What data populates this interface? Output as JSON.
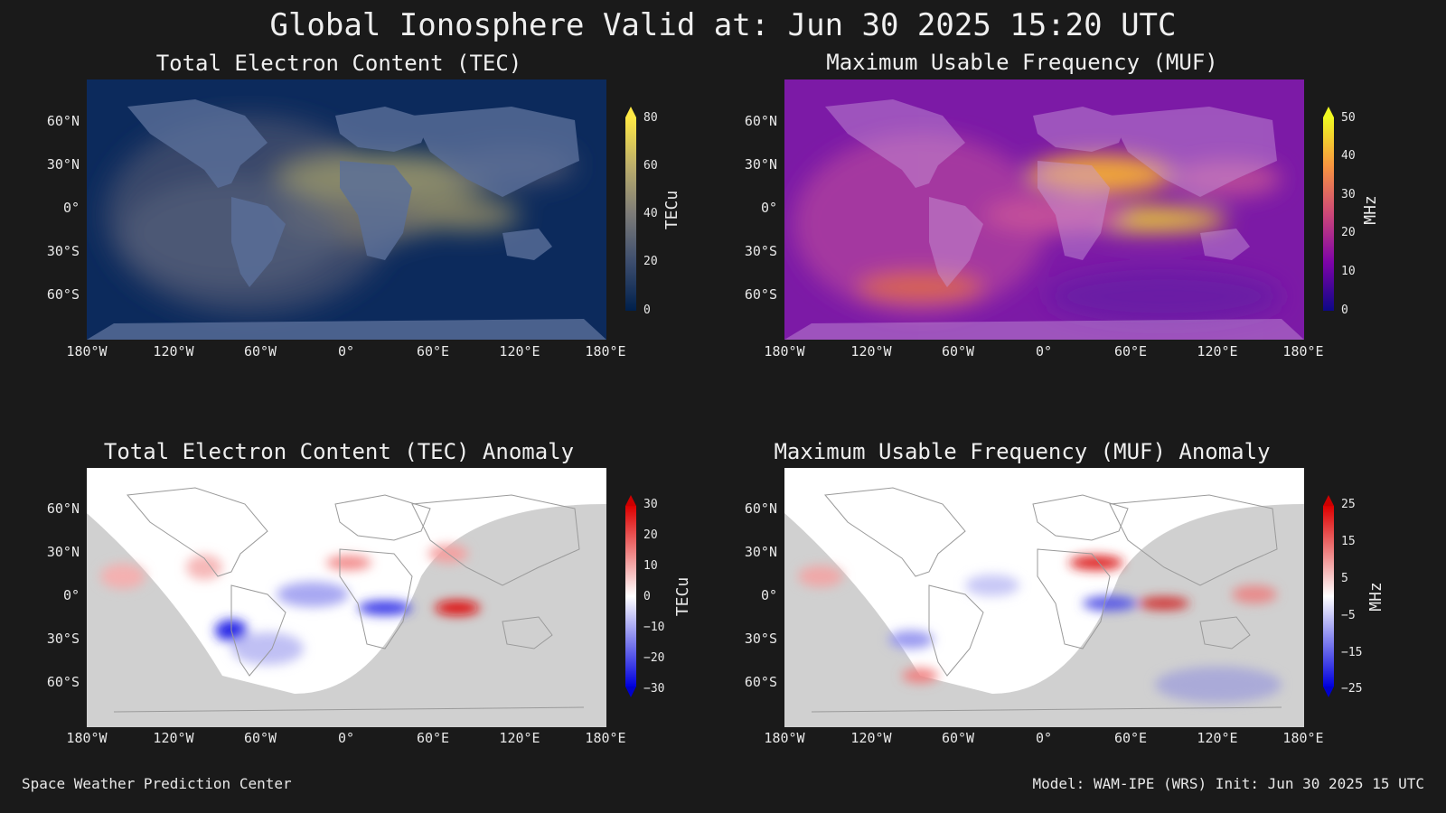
{
  "title": "Global Ionosphere Valid at: Jun 30 2025 15:20 UTC",
  "footer": {
    "left": "Space Weather Prediction Center",
    "right": "Model: WAM-IPE (WRS) Init: Jun 30 2025 15 UTC"
  },
  "lat_ticks": [
    "60°N",
    "30°N",
    "0°",
    "30°S",
    "60°S"
  ],
  "lon_ticks": [
    "180°W",
    "120°W",
    "60°W",
    "0°",
    "60°E",
    "120°E",
    "180°E"
  ],
  "panels": [
    {
      "title": "Total Electron Content (TEC)",
      "unit": "TECu",
      "colormap": "cividis",
      "colorbar_ticks": [
        "80",
        "60",
        "40",
        "20",
        "0"
      ]
    },
    {
      "title": "Maximum Usable Frequency (MUF)",
      "unit": "MHz",
      "colormap": "plasma",
      "colorbar_ticks": [
        "50",
        "40",
        "30",
        "20",
        "10",
        "0"
      ]
    },
    {
      "title": "Total Electron Content (TEC) Anomaly",
      "unit": "TECu",
      "colormap": "blue-white-red",
      "colorbar_ticks": [
        "30",
        "20",
        "10",
        "0",
        "−10",
        "−20",
        "−30"
      ]
    },
    {
      "title": "Maximum Usable Frequency (MUF) Anomaly",
      "unit": "MHz",
      "colormap": "blue-white-red",
      "colorbar_ticks": [
        "25",
        "15",
        "5",
        "−5",
        "−15",
        "−25"
      ]
    }
  ],
  "colors": {
    "background": "#1a1a1a",
    "tec_low": "#00204c",
    "tec_high": "#ffe945",
    "muf_low": "#0d0887",
    "muf_high": "#f0f921",
    "anomaly_positive": "#dd0000",
    "anomaly_negative": "#0000dd"
  }
}
